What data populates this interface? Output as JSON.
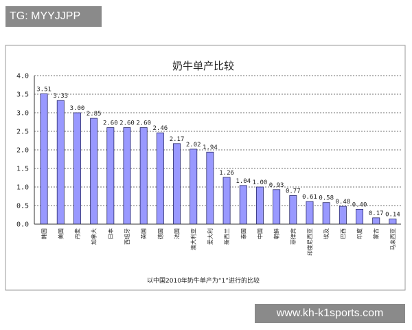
{
  "watermark_tag": "TG: MYYJJPP",
  "site_banner": "www.kh-k1sports.com",
  "colors": {
    "bar_fill": "#9999ff",
    "bar_stroke": "#2a2a6a",
    "grid": "#444444",
    "overlay_box": "#8a8a8a"
  },
  "chart_data": {
    "type": "bar",
    "title": "奶牛单产比较",
    "note": "以中国2010年奶牛单产为“1”进行的比较",
    "categories": [
      "韩国",
      "美国",
      "丹麦",
      "加拿大",
      "日本",
      "西班牙",
      "英国",
      "德国",
      "法国",
      "澳大利亚",
      "爱大利",
      "新西兰",
      "泰国",
      "中国",
      "朝鲜",
      "菲律宾",
      "印度尼西亚",
      "埃及",
      "巴西",
      "印度",
      "蒙古",
      "马来西亚"
    ],
    "values": [
      3.51,
      3.33,
      3.0,
      2.85,
      2.6,
      2.6,
      2.6,
      2.46,
      2.17,
      2.02,
      1.94,
      1.26,
      1.04,
      1.0,
      0.93,
      0.77,
      0.61,
      0.58,
      0.48,
      0.4,
      0.17,
      0.14
    ],
    "value_labels": [
      "3.51",
      "3.33",
      "3.00",
      "2.85",
      "2.60",
      "2.60",
      "2.60",
      "2.46",
      "2.17",
      "2.02",
      "1.94",
      "1.26",
      "1.04",
      "1.00",
      "0.93",
      "0.77",
      "0.61",
      "0.58",
      "0.48",
      "0.40",
      "0.17",
      "0.14"
    ],
    "yticks": [
      "0.0",
      "0.5",
      "1.0",
      "1.5",
      "2.0",
      "2.5",
      "3.0",
      "3.5",
      "4.0"
    ],
    "ylim": [
      0,
      4
    ],
    "grid": true,
    "legend": false
  }
}
